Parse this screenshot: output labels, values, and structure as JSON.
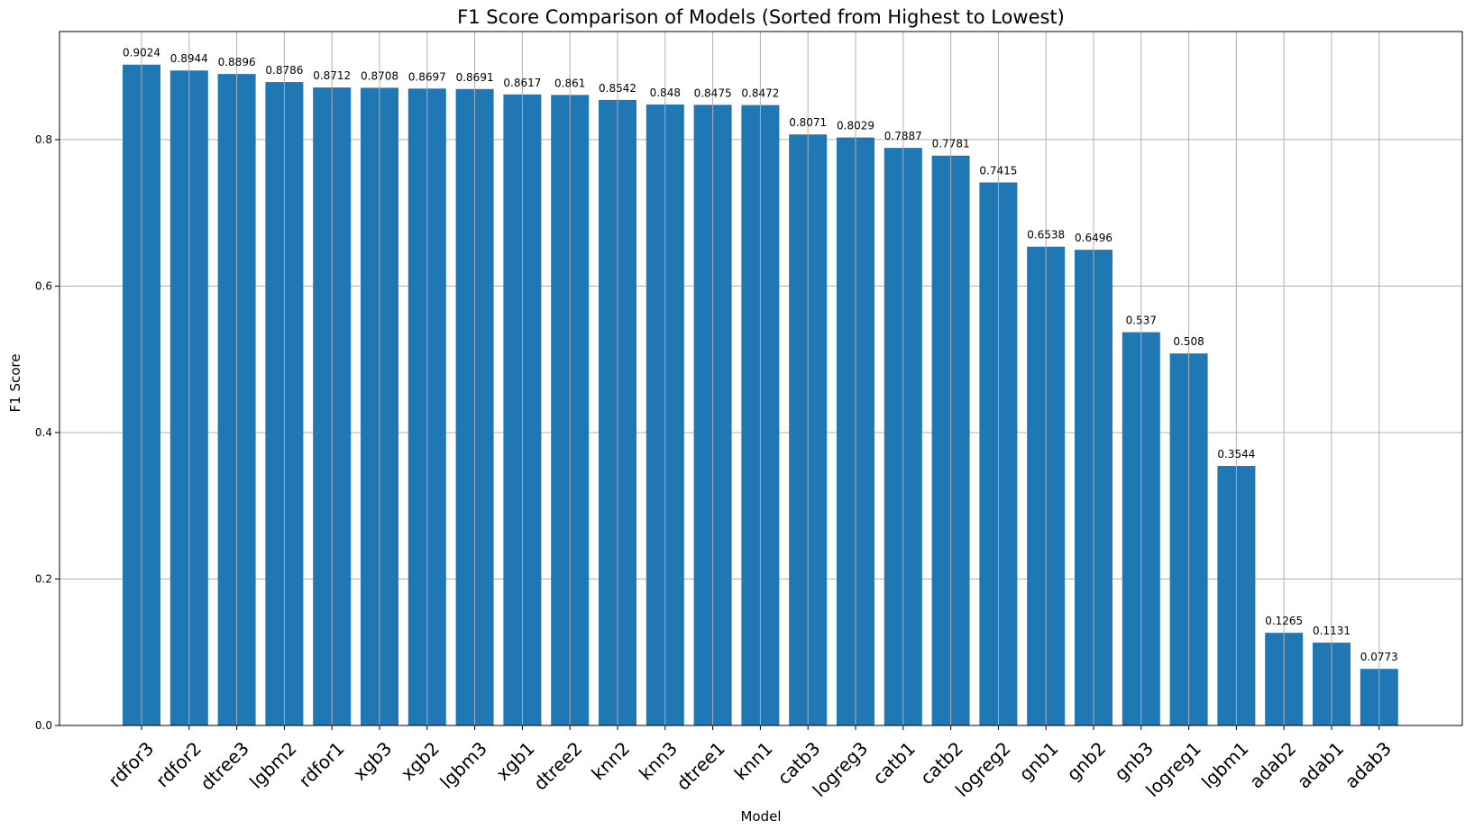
{
  "chart_data": {
    "type": "bar",
    "title": "F1 Score Comparison of Models (Sorted from Highest to Lowest)",
    "xlabel": "Model",
    "ylabel": "F1 Score",
    "ylim": [
      0,
      0.9476
    ],
    "yticks": [
      "0.0",
      "0.2",
      "0.4",
      "0.6",
      "0.8"
    ],
    "grid": true,
    "bar_color": "#1f77b4",
    "categories": [
      "rdfor3",
      "rdfor2",
      "dtree3",
      "lgbm2",
      "rdfor1",
      "xgb3",
      "xgb2",
      "lgbm3",
      "xgb1",
      "dtree2",
      "knn2",
      "knn3",
      "dtree1",
      "knn1",
      "catb3",
      "logreg3",
      "catb1",
      "catb2",
      "logreg2",
      "gnb1",
      "gnb2",
      "gnb3",
      "logreg1",
      "lgbm1",
      "adab2",
      "adab1",
      "adab3"
    ],
    "values": [
      0.9024,
      0.8944,
      0.8896,
      0.8786,
      0.8712,
      0.8708,
      0.8697,
      0.8691,
      0.8617,
      0.861,
      0.8542,
      0.848,
      0.8475,
      0.8472,
      0.8071,
      0.8029,
      0.7887,
      0.7781,
      0.7415,
      0.6538,
      0.6496,
      0.537,
      0.508,
      0.3544,
      0.1265,
      0.1131,
      0.0773
    ],
    "value_labels": [
      "0.9024",
      "0.8944",
      "0.8896",
      "0.8786",
      "0.8712",
      "0.8708",
      "0.8697",
      "0.8691",
      "0.8617",
      "0.861",
      "0.8542",
      "0.848",
      "0.8475",
      "0.8472",
      "0.8071",
      "0.8029",
      "0.7887",
      "0.7781",
      "0.7415",
      "0.6538",
      "0.6496",
      "0.537",
      "0.508",
      "0.3544",
      "0.1265",
      "0.1131",
      "0.0773"
    ]
  }
}
